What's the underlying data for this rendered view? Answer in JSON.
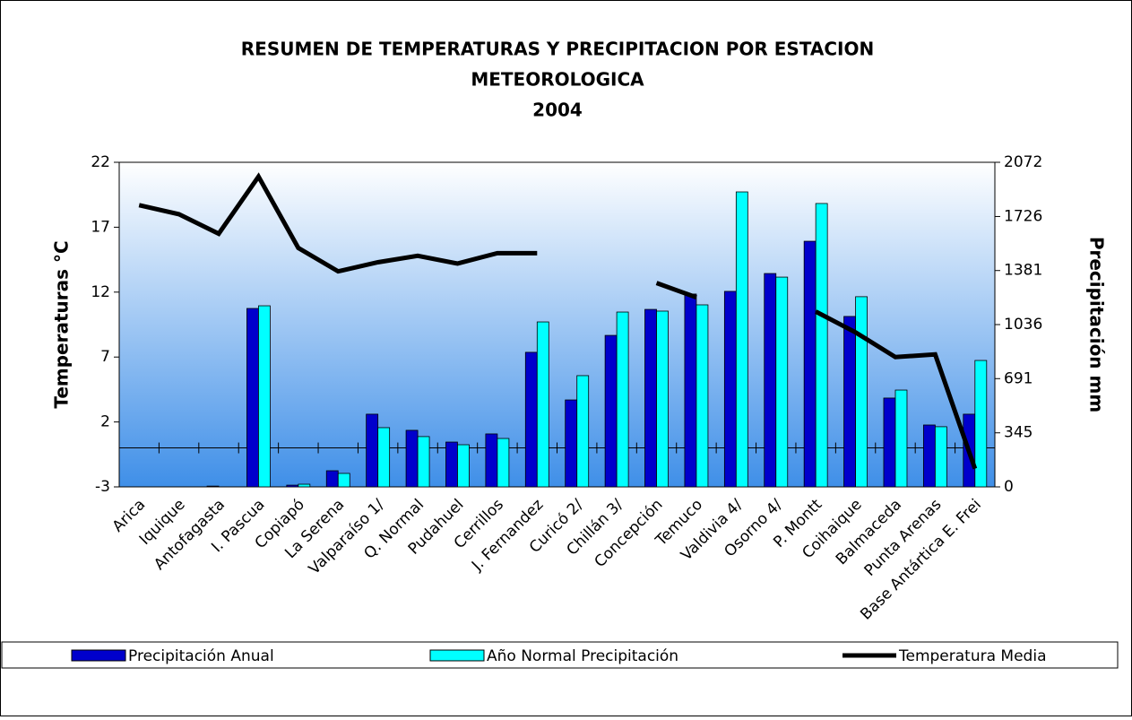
{
  "chart_data": {
    "type": "bar",
    "title_lines": [
      "RESUMEN DE TEMPERATURAS Y PRECIPITACION POR ESTACION",
      "METEOROLOGICA",
      "2004"
    ],
    "ylabel": "Temperaturas °C",
    "y2label": "Precipitación mm",
    "categories": [
      "Arica",
      "Iquique",
      "Antofagasta",
      "I. Pascua",
      "Copiapó",
      "La Serena",
      "Valparaíso 1/",
      "Q. Normal",
      "Pudahuel",
      "Cerrillos",
      "J. Fernandez",
      "Curicó 2/",
      "Chillán 3/",
      "Concepción",
      "Temuco",
      "Valdivia 4/",
      "Osorno 4/",
      "P. Montt",
      "Coihaique",
      "Balmaceda",
      "Punta Arenas",
      "Base Antártica E. Frei"
    ],
    "series": [
      {
        "name": "Precipitación Anual",
        "type": "bar",
        "axis": "y2",
        "color": "#0000cc",
        "values": [
          0,
          0,
          5,
          1139,
          11,
          103,
          464,
          361,
          286,
          338,
          859,
          555,
          967,
          1133,
          1231,
          1248,
          1362,
          1568,
          1088,
          567,
          395,
          464
        ]
      },
      {
        "name": "Año Normal Precipitación",
        "type": "bar",
        "axis": "y2",
        "color": "#00ffff",
        "values": [
          0,
          0,
          0,
          1156,
          17,
          86,
          378,
          321,
          269,
          309,
          1053,
          710,
          1116,
          1122,
          1162,
          1883,
          1339,
          1809,
          1214,
          618,
          384,
          807
        ]
      },
      {
        "name": "Temperatura Media",
        "type": "line",
        "axis": "y",
        "color": "#000000",
        "values": [
          18.7,
          18.0,
          16.5,
          20.9,
          15.4,
          13.6,
          14.3,
          14.8,
          14.2,
          15.0,
          15.0,
          null,
          null,
          12.7,
          11.6,
          null,
          null,
          10.5,
          8.9,
          7.0,
          7.2,
          -1.6
        ]
      }
    ],
    "ylim": [
      -3,
      22
    ],
    "yticks": [
      -3,
      2,
      7,
      12,
      17,
      22
    ],
    "y2lim": [
      0,
      2072
    ],
    "y2ticks": [
      0,
      345,
      691,
      1036,
      1381,
      1726,
      2072
    ],
    "legend": "bottom"
  }
}
